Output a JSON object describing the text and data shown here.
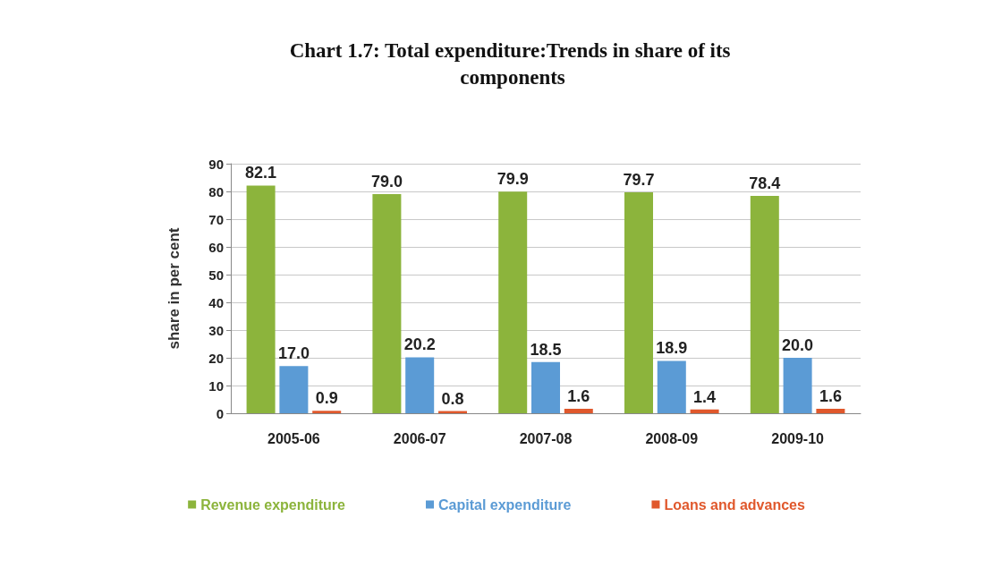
{
  "chart_data": {
    "type": "bar",
    "title": "Chart 1.7: Total expenditure:Trends in share of its components",
    "ylabel": "share in per cent",
    "categories": [
      "2005-06",
      "2006-07",
      "2007-08",
      "2008-09",
      "2009-10"
    ],
    "series": [
      {
        "name": "Revenue expenditure",
        "color": "#8cb43c",
        "values": [
          82.1,
          79.0,
          79.9,
          79.7,
          78.4
        ],
        "value_labels": [
          "82.1",
          "79.0",
          "79.9",
          "79.7",
          "78.4"
        ]
      },
      {
        "name": "Capital expenditure",
        "color": "#5b9bd5",
        "values": [
          17.0,
          20.2,
          18.5,
          18.9,
          20.0
        ],
        "value_labels": [
          "17.0",
          "20.2",
          "18.5",
          "18.9",
          "20.0"
        ]
      },
      {
        "name": "Loans and advances",
        "color": "#e0582c",
        "values": [
          0.9,
          0.8,
          1.6,
          1.4,
          1.6
        ],
        "value_labels": [
          "0.9",
          "0.8",
          "1.6",
          "1.4",
          "1.6"
        ]
      }
    ],
    "ylim": [
      0,
      90
    ],
    "yticks": [
      0,
      10,
      20,
      30,
      40,
      50,
      60,
      70,
      80,
      90
    ],
    "grid": "y",
    "legend": "bottom"
  }
}
